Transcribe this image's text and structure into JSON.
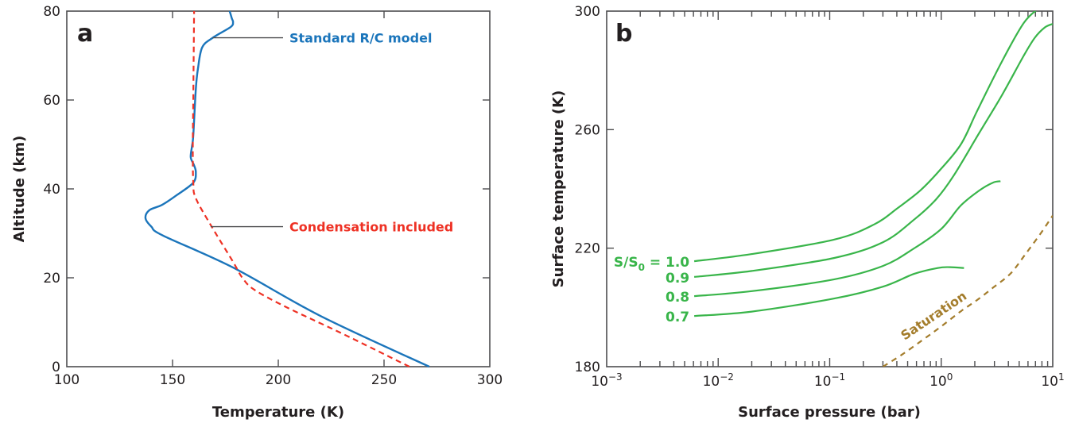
{
  "chart_data": [
    {
      "type": "line",
      "panel_label": "a",
      "title": "",
      "xlabel": "Temperature (K)",
      "ylabel": "Altitude (km)",
      "xlim": [
        100,
        300
      ],
      "ylim": [
        0,
        80
      ],
      "xticks": [
        100,
        150,
        200,
        250,
        300
      ],
      "xtick_labels": [
        "100",
        "150",
        "200",
        "250",
        "300"
      ],
      "yticks": [
        0,
        20,
        40,
        60,
        80
      ],
      "ytick_labels": [
        "0",
        "20",
        "40",
        "60",
        "80"
      ],
      "grid": false,
      "series": [
        {
          "name": "Standard R/C model",
          "color": "#1b75bb",
          "style": "solid",
          "x": [
            271.4,
            220,
            178.6,
            145.5,
            140,
            137.2,
            139,
            145,
            152,
            159.8,
            161,
            160,
            158.6,
            159.2,
            159.8,
            161,
            162,
            164,
            169,
            177.4,
            178.6,
            178,
            177
          ],
          "y": [
            0,
            11.4,
            22.3,
            29.5,
            31.5,
            33.4,
            35.2,
            36.4,
            38.6,
            41.4,
            43.8,
            45.5,
            47.1,
            49.6,
            52.1,
            62.5,
            67,
            71.8,
            74,
            76.4,
            77.5,
            78.4,
            80
          ]
        },
        {
          "name": "Condensation included",
          "color": "#ee3124",
          "style": "dashed",
          "x": [
            262,
            230,
            203.8,
            188.7,
            183,
            178.6,
            168.4,
            161,
            159.8,
            159.6,
            159.8,
            160,
            160.2
          ],
          "y": [
            0,
            7.5,
            13.4,
            17.3,
            20,
            23.6,
            31.6,
            37.9,
            41.4,
            50,
            60,
            70,
            80
          ]
        }
      ],
      "annotations": [
        {
          "text": "Standard R/C model",
          "color": "#1b75bb",
          "points_to": [
            169,
            74
          ]
        },
        {
          "text": "Condensation included",
          "color": "#ee3124",
          "points_to": [
            168,
            31.5
          ]
        }
      ]
    },
    {
      "type": "line",
      "panel_label": "b",
      "title": "",
      "xlabel": "Surface pressure (bar)",
      "ylabel": "Surface temperature (K)",
      "xscale": "log",
      "xlim": [
        0.001,
        10
      ],
      "ylim": [
        180,
        300
      ],
      "xticks": [
        0.001,
        0.01,
        0.1,
        1,
        10
      ],
      "xtick_labels": [
        {
          "base": "10",
          "exp": "−3"
        },
        {
          "base": "10",
          "exp": "−2"
        },
        {
          "base": "10",
          "exp": "−1"
        },
        {
          "base": "10",
          "exp": "0"
        },
        {
          "base": "10",
          "exp": "1"
        }
      ],
      "yticks": [
        180,
        220,
        260,
        300
      ],
      "ytick_labels": [
        "180",
        "220",
        "260",
        "300"
      ],
      "grid": false,
      "series": [
        {
          "name": "1.0",
          "label_prefix": "S/S",
          "label_sub": "0",
          "label_eq": " = ",
          "color": "#39b54a",
          "style": "solid",
          "x": [
            0.0061,
            0.02,
            0.11,
            0.25,
            0.41,
            0.65,
            0.95,
            1.5,
            2.1,
            3.5,
            5.5,
            7.5
          ],
          "y": [
            215.6,
            218,
            222.9,
            228,
            233.6,
            239.5,
            245.9,
            255,
            266.3,
            283,
            296,
            301
          ]
        },
        {
          "name": "0.9",
          "color": "#39b54a",
          "style": "solid",
          "x": [
            0.0061,
            0.02,
            0.11,
            0.3,
            0.57,
            0.9,
            1.3,
            2.2,
            3.5,
            5.5,
            6.9,
            8.5,
            10
          ],
          "y": [
            210.3,
            212.3,
            216.7,
            222,
            229.6,
            236.5,
            244.6,
            259,
            271.6,
            285,
            291,
            294.5,
            295.7
          ]
        },
        {
          "name": "0.8",
          "color": "#39b54a",
          "style": "solid",
          "x": [
            0.0061,
            0.02,
            0.11,
            0.3,
            0.57,
            1.0,
            1.5,
            2.2,
            2.9,
            3.4
          ],
          "y": [
            203.8,
            205.5,
            209.5,
            214,
            219.9,
            226.5,
            234.4,
            239.5,
            242.1,
            242.6
          ]
        },
        {
          "name": "0.7",
          "color": "#39b54a",
          "style": "solid",
          "x": [
            0.0061,
            0.02,
            0.11,
            0.3,
            0.57,
            0.93,
            1.2,
            1.6
          ],
          "y": [
            197.1,
            198.6,
            203,
            207,
            211.3,
            213.3,
            213.6,
            213.3
          ]
        },
        {
          "name": "Saturation",
          "color": "#a47d2c",
          "style": "dashed",
          "x": [
            0.3,
            0.45,
            0.68,
            1.0,
            1.5,
            2.1,
            2.95,
            4.2,
            5.7,
            7.8,
            10
          ],
          "y": [
            180,
            184.2,
            189,
            193.6,
            198.7,
            202.5,
            206.8,
            211.5,
            218,
            225,
            231
          ]
        }
      ],
      "annotations": [
        {
          "text": "Saturation",
          "color": "#a47d2c"
        }
      ]
    }
  ]
}
